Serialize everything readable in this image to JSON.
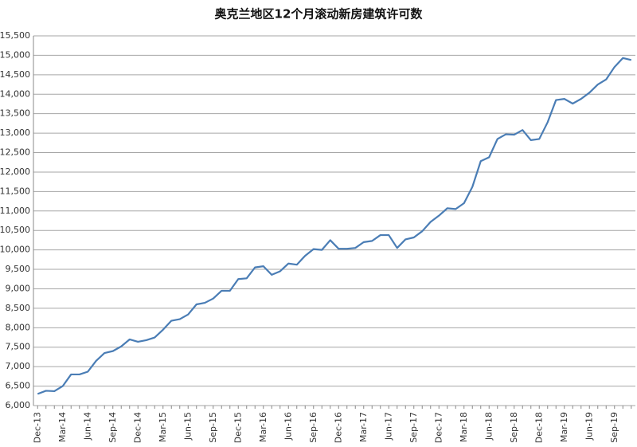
{
  "chart_data": {
    "type": "line",
    "title": "奥克兰地区12个月滚动新房建筑许可数",
    "categories": [
      "Dec-13",
      null,
      null,
      "Mar-14",
      null,
      null,
      "Jun-14",
      null,
      null,
      "Sep-14",
      null,
      null,
      "Dec-14",
      null,
      null,
      "Mar-15",
      null,
      null,
      "Jun-15",
      null,
      null,
      "Sep-15",
      null,
      null,
      "Dec-15",
      null,
      null,
      "Mar-16",
      null,
      null,
      "Jun-16",
      null,
      null,
      "Sep-16",
      null,
      null,
      "Dec-16",
      null,
      null,
      "Mar-17",
      null,
      null,
      "Jun-17",
      null,
      null,
      "Sep-17",
      null,
      null,
      "Dec-17",
      null,
      null,
      "Mar-18",
      null,
      null,
      "Jun-18",
      null,
      null,
      "Sep-18",
      null,
      null,
      "Dec-18",
      null,
      null,
      "Mar-19",
      null,
      null,
      "Jun-19",
      null,
      null,
      "Sep-19",
      null,
      null
    ],
    "values": [
      6300,
      6380,
      6370,
      6500,
      6800,
      6800,
      6870,
      7150,
      7350,
      7400,
      7520,
      7700,
      7640,
      7680,
      7750,
      7950,
      8180,
      8220,
      8340,
      8600,
      8640,
      8750,
      8950,
      8950,
      9250,
      9270,
      9550,
      9580,
      9360,
      9450,
      9650,
      9620,
      9850,
      10020,
      10000,
      10250,
      10030,
      10030,
      10050,
      10200,
      10230,
      10380,
      10380,
      10050,
      10270,
      10320,
      10480,
      10720,
      10880,
      11070,
      11050,
      11200,
      11620,
      12280,
      12380,
      12850,
      12970,
      12960,
      13080,
      12820,
      12850,
      13280,
      13850,
      13880,
      13760,
      13880,
      14040,
      14250,
      14380,
      14700,
      14930,
      14880
    ],
    "color": "#4a7db5",
    "ylim": [
      6000,
      15500
    ],
    "yticks": [
      {
        "value": 6000,
        "label": "6,000"
      },
      {
        "value": 6500,
        "label": "6,500"
      },
      {
        "value": 7000,
        "label": "7,000"
      },
      {
        "value": 7500,
        "label": "7,500"
      },
      {
        "value": 8000,
        "label": "8,000"
      },
      {
        "value": 8500,
        "label": "8,500"
      },
      {
        "value": 9000,
        "label": "9,000"
      },
      {
        "value": 9500,
        "label": "9,500"
      },
      {
        "value": 10000,
        "label": "10,000"
      },
      {
        "value": 10500,
        "label": "10,500"
      },
      {
        "value": 11000,
        "label": "11,000"
      },
      {
        "value": 11500,
        "label": "11,500"
      },
      {
        "value": 12000,
        "label": "12,000"
      },
      {
        "value": 12500,
        "label": "12,500"
      },
      {
        "value": 13000,
        "label": "13,000"
      },
      {
        "value": 13500,
        "label": "13,500"
      },
      {
        "value": 14000,
        "label": "14,000"
      },
      {
        "value": 14500,
        "label": "14,500"
      },
      {
        "value": 15000,
        "label": "15,000"
      },
      {
        "value": 15500,
        "label": "15,500"
      }
    ],
    "grid": true
  }
}
